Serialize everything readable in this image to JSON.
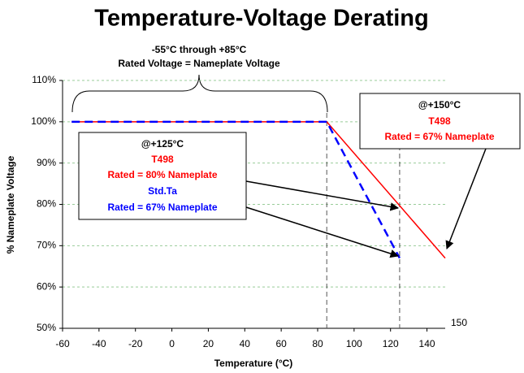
{
  "chart_data": {
    "type": "line",
    "title": "Temperature-Voltage Derating",
    "x_label": "Temperature (°C)",
    "y_label": "% Nameplate Voltage",
    "series": [
      {
        "color": "#ff0000",
        "dashed": false,
        "x": [
          -55,
          85,
          150
        ],
        "values": [
          100,
          100,
          67
        ]
      },
      {
        "color": "#0000ff",
        "dashed": true,
        "x": [
          -55,
          85,
          125
        ],
        "values": [
          100,
          100,
          67
        ]
      }
    ],
    "xlim": [
      -60,
      150
    ],
    "xticks": [
      -60,
      -40,
      -20,
      0,
      20,
      40,
      60,
      80,
      100,
      120,
      140
    ],
    "ylim": [
      50,
      110
    ],
    "yticks": [
      {
        "value": 50,
        "label": "50%"
      },
      {
        "value": 60,
        "label": "60%"
      },
      {
        "value": 70,
        "label": "70%"
      },
      {
        "value": 80,
        "label": "80%"
      },
      {
        "value": 90,
        "label": "90%"
      },
      {
        "value": 100,
        "label": "100%"
      },
      {
        "value": 110,
        "label": "110%"
      }
    ],
    "grid": true,
    "vlines": [
      85,
      125
    ],
    "annotations": {
      "range": [
        "-55°C through +85°C",
        "Rated Voltage = Nameplate Voltage"
      ],
      "box125": [
        "@+125°C",
        "T498",
        "Rated = 80% Nameplate",
        "Std.Ta",
        "Rated = 67% Nameplate"
      ],
      "box150": [
        "@+150°C",
        "T498",
        "Rated = 67% Nameplate"
      ],
      "corner": "150"
    }
  }
}
